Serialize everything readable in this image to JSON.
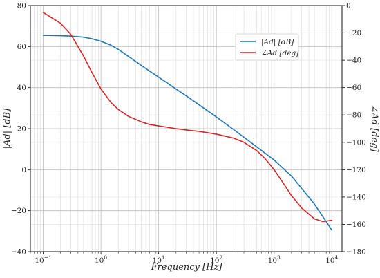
{
  "chart_data": {
    "type": "line",
    "title": "",
    "xlabel": "Frequency [Hz]",
    "ylabel_left": "|Ad| [dB]",
    "ylabel_right": "∠Ad [deg]",
    "xscale": "log",
    "xlim": [
      0.06,
      15000
    ],
    "ylim_left": [
      -40,
      80
    ],
    "ylim_right": [
      -180,
      0
    ],
    "x_ticks": [
      0.1,
      1,
      10,
      100,
      1000,
      10000
    ],
    "x_tick_labels": {
      "bases": [
        "10",
        "10",
        "10",
        "10",
        "10",
        "10"
      ],
      "exponents": [
        "−1",
        "0",
        "1",
        "2",
        "3",
        "4"
      ]
    },
    "y_ticks_left": [
      -40,
      -20,
      0,
      20,
      40,
      60,
      80
    ],
    "y_tick_labels_left": [
      "−40",
      "−20",
      "0",
      "20",
      "40",
      "60",
      "80"
    ],
    "y_ticks_right": [
      -180,
      -160,
      -140,
      -120,
      -100,
      -80,
      -60,
      -40,
      -20,
      0
    ],
    "y_tick_labels_right": [
      "−180",
      "−160",
      "−140",
      "−120",
      "−100",
      "−80",
      "−60",
      "−40",
      "−20",
      "0"
    ],
    "grid": true,
    "grid_minor": true,
    "legend_position": "top-right",
    "series": [
      {
        "name": "|Ad| [dB]",
        "axis": "left",
        "color": "#1f77b4",
        "x": [
          0.1,
          0.2,
          0.3,
          0.5,
          0.7,
          1,
          1.5,
          2,
          3,
          5,
          7,
          10,
          20,
          30,
          50,
          100,
          200,
          500,
          1000,
          2000,
          5000,
          10000
        ],
        "y": [
          65.5,
          65.3,
          65.1,
          64.6,
          63.8,
          62.6,
          60.6,
          58.6,
          55.2,
          50.8,
          48.0,
          45.1,
          39.3,
          36.0,
          31.6,
          25.7,
          19.5,
          11.1,
          4.7,
          -3.1,
          -16.8,
          -29.5
        ]
      },
      {
        "name": "∠Ad [deg]",
        "axis": "right",
        "color": "#d62728",
        "x": [
          0.1,
          0.2,
          0.3,
          0.5,
          0.7,
          1,
          1.5,
          2,
          3,
          5,
          7,
          10,
          20,
          30,
          50,
          100,
          200,
          300,
          500,
          700,
          1000,
          1500,
          2000,
          3000,
          5000,
          7000,
          10000
        ],
        "y": [
          -5,
          -13,
          -21,
          -37,
          -49,
          -61,
          -71,
          -76,
          -81,
          -85,
          -87,
          -88,
          -90,
          -91,
          -92,
          -94,
          -97,
          -100,
          -106,
          -112,
          -120,
          -131,
          -139,
          -148,
          -156,
          -158,
          -157
        ]
      }
    ]
  }
}
